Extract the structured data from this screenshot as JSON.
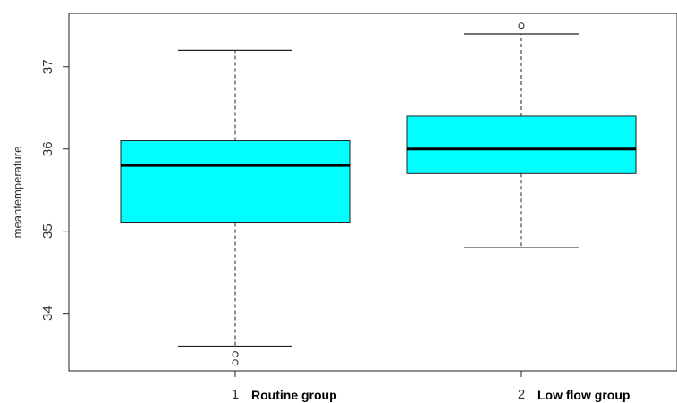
{
  "chart_data": {
    "type": "boxplot",
    "title": "",
    "xlabel": "",
    "ylabel": "meantemperature",
    "ylim": [
      33.3,
      37.65
    ],
    "yticks": [
      34,
      35,
      36,
      37
    ],
    "grid": false,
    "box_color": "#00ffff",
    "categories": [
      {
        "tick": "1",
        "label": "Routine group"
      },
      {
        "tick": "2",
        "label": "Low flow group"
      }
    ],
    "series": [
      {
        "whisker_low": 33.6,
        "q1": 35.1,
        "median": 35.8,
        "q3": 36.1,
        "whisker_high": 37.2,
        "outliers": [
          33.5,
          33.4
        ]
      },
      {
        "whisker_low": 34.8,
        "q1": 35.7,
        "median": 36.0,
        "q3": 36.4,
        "whisker_high": 37.4,
        "outliers": [
          37.5
        ]
      }
    ]
  }
}
